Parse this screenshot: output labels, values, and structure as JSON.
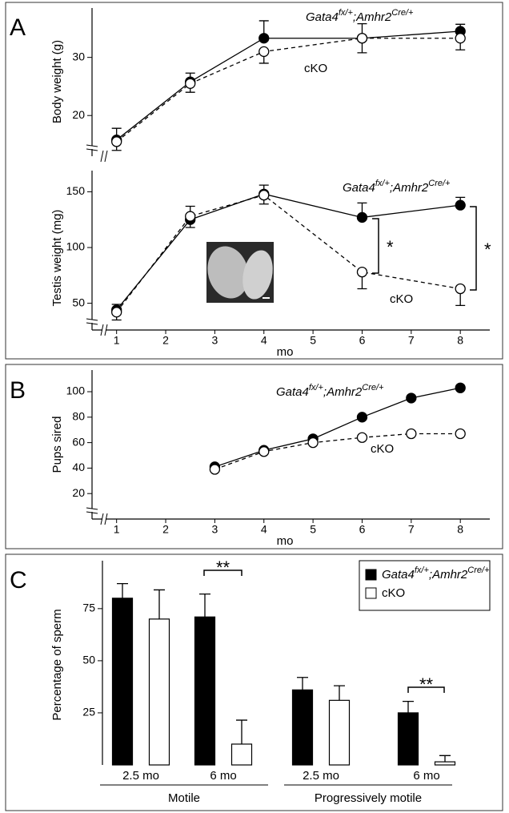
{
  "panel_labels": [
    "A",
    "B",
    "C"
  ],
  "chart_data": [
    {
      "type": "line",
      "ylabel": "Body weight (g)",
      "x": [
        1,
        2.5,
        4,
        6,
        8
      ],
      "xlim": [
        0.5,
        8.6
      ],
      "ylim": [
        13,
        38.5
      ],
      "yticks": [
        20,
        30
      ],
      "series": [
        {
          "name": "Gata4fx/+;Amhr2Cre/+",
          "color": "#000000",
          "line_style": "solid",
          "values": [
            15.8,
            25.8,
            33.3,
            33.3,
            34.5
          ],
          "errors": [
            2,
            1.5,
            3,
            2.5,
            1.2
          ]
        },
        {
          "name": "cKO",
          "color": "#ffffff",
          "line_style": "dashed",
          "values": [
            15.5,
            25.5,
            31,
            33.3,
            33.3
          ],
          "errors": [
            1.5,
            1.5,
            2,
            2.5,
            2
          ]
        }
      ]
    },
    {
      "type": "line",
      "ylabel": "Testis weight (mg)",
      "xlabel": "mo",
      "x": [
        1,
        2.5,
        4,
        6,
        8
      ],
      "xlim": [
        0.5,
        8.6
      ],
      "xticks": [
        1,
        2,
        3,
        4,
        5,
        6,
        7,
        8
      ],
      "ylim": [
        26,
        169
      ],
      "yticks": [
        50,
        100,
        150
      ],
      "series": [
        {
          "name": "Gata4fx/+;Amhr2Cre/+",
          "color": "#000000",
          "line_style": "solid",
          "values": [
            44,
            125,
            148,
            127,
            138
          ],
          "errors": [
            5,
            12,
            8,
            13,
            7
          ]
        },
        {
          "name": "cKO",
          "color": "#ffffff",
          "line_style": "dashed",
          "values": [
            42,
            128,
            147,
            78,
            63
          ],
          "errors": [
            7,
            10,
            8,
            15,
            15
          ]
        }
      ],
      "annotations": [
        "*",
        "*"
      ]
    },
    {
      "type": "line",
      "ylabel": "Pups sired",
      "xlabel": "mo",
      "x": [
        3,
        4,
        5,
        6,
        7,
        8
      ],
      "xlim": [
        0.5,
        8.6
      ],
      "xticks": [
        1,
        2,
        3,
        4,
        5,
        6,
        7,
        8
      ],
      "ylim": [
        0,
        117
      ],
      "yticks": [
        20,
        40,
        60,
        80,
        100
      ],
      "series": [
        {
          "name": "Gata4fx/+;Amhr2Cre/+",
          "color": "#000000",
          "line_style": "solid",
          "values": [
            41,
            54,
            63,
            80,
            95,
            103
          ]
        },
        {
          "name": "cKO",
          "color": "#ffffff",
          "line_style": "dashed",
          "values": [
            39,
            53,
            60,
            64,
            67,
            67
          ]
        }
      ]
    },
    {
      "type": "bar",
      "ylabel": "Percentage of sperm",
      "categories": [
        "2.5 mo",
        "6 mo",
        "2.5 mo",
        "6 mo"
      ],
      "groups": [
        "Motile",
        "Progressively motile"
      ],
      "ylim": [
        0,
        98
      ],
      "yticks": [
        25,
        50,
        75
      ],
      "series": [
        {
          "name": "Gata4fx/+;Amhr2Cre/+",
          "color": "#000000",
          "values": [
            80,
            71,
            36,
            25
          ],
          "errors": [
            7,
            11,
            6,
            5.5
          ]
        },
        {
          "name": "cKO",
          "color": "#ffffff",
          "values": [
            70,
            10,
            31,
            1.5
          ],
          "errors": [
            14,
            11.5,
            7,
            3
          ]
        }
      ],
      "annotations": [
        "**",
        "**"
      ]
    }
  ]
}
